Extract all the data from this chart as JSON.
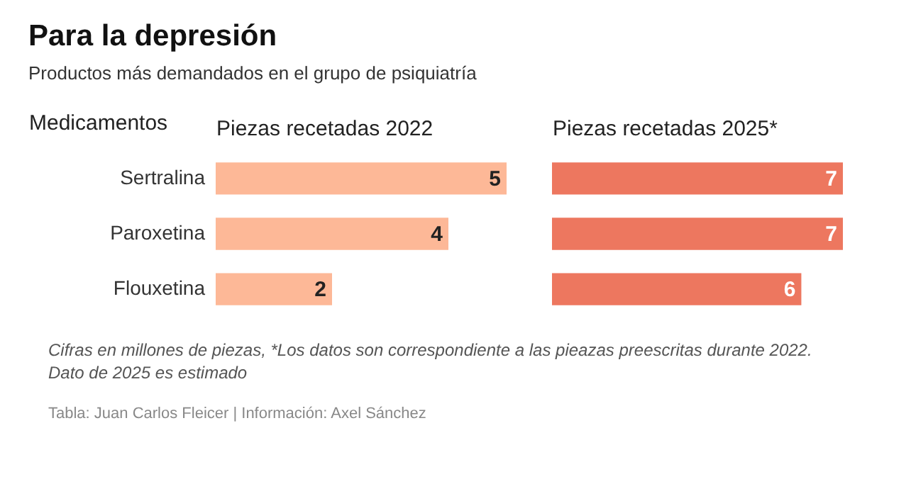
{
  "chart_data": [
    {
      "type": "bar",
      "orientation": "horizontal",
      "title": "Para la depresión",
      "subtitle": "Productos más demandados en el grupo de psiquiatría",
      "xlabel": "Piezas recetadas 2022",
      "ylabel": "Medicamentos",
      "categories": [
        "Sertralina",
        "Paroxetina",
        "Flouxetina"
      ],
      "values": [
        5,
        4,
        2
      ],
      "color": "#fdb897",
      "data_labels": true,
      "xlim": [
        0,
        5
      ],
      "tick_labels": "y",
      "annotations": [
        "Cifras en millones de piezas, *Los datos son correspondiente a las pieazas preescritas durante 2022. Dato de 2025 es estimado",
        "Tabla: Juan Carlos Fleicer | Información: Axel Sánchez"
      ]
    },
    {
      "type": "bar",
      "orientation": "horizontal",
      "xlabel": "Piezas recetadas 2025*",
      "categories": [
        null,
        null,
        null
      ],
      "values": [
        7,
        7,
        6
      ],
      "color": "#ed775f",
      "data_labels": true,
      "xlim": [
        0,
        7
      ],
      "tick_labels": false
    }
  ]
}
